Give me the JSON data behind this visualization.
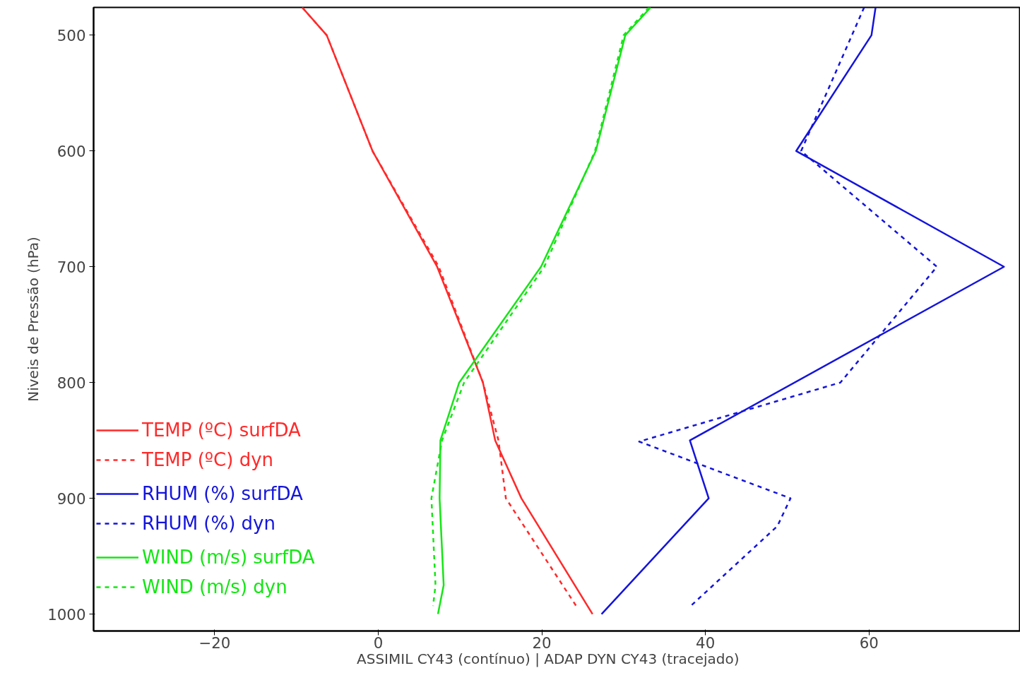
{
  "chart_data": {
    "type": "line",
    "xlabel": "ASSIMIL CY43 (contínuo)   |   ADAP DYN CY43 (tracejado)",
    "ylabel": "Niveis de Pressão (hPa)",
    "xlim": [
      -34.8,
      78.5
    ],
    "ylim": [
      1014.6,
      476
    ],
    "xticks": [
      -20,
      0,
      20,
      40,
      60
    ],
    "yticks": [
      500,
      600,
      700,
      800,
      900,
      1000
    ],
    "grid": false,
    "legend": "left",
    "marker": "none",
    "series": [
      {
        "name": "TEMP (ºC) surfDA",
        "color": "#ff2a2a",
        "line_style": "solid",
        "x": [
          -9.3,
          -6.3,
          -0.7,
          7.2,
          12.8,
          14.3,
          17.5,
          26.2
        ],
        "values": [
          476,
          500,
          600,
          700,
          800,
          850,
          900,
          1000
        ]
      },
      {
        "name": "TEMP (ºC) dyn",
        "color": "#ff2a2a",
        "line_style": "dashed",
        "x": [
          -9.3,
          -6.3,
          -0.7,
          7.4,
          12.8,
          14.7,
          15.6,
          24.2
        ],
        "values": [
          476,
          500,
          600,
          700,
          800,
          850,
          900,
          993
        ]
      },
      {
        "name": "RHUM (%) surfDA",
        "color": "#1414dc",
        "line_style": "solid",
        "x": [
          60.8,
          60.3,
          51.1,
          76.5,
          38.1,
          40.4,
          27.3
        ],
        "values": [
          476,
          500,
          600,
          700,
          850,
          900,
          1000
        ]
      },
      {
        "name": "RHUM (%) dyn",
        "color": "#1414dc",
        "line_style": "dashed",
        "x": [
          59.4,
          51.7,
          68.3,
          56.5,
          31.9,
          50.4,
          48.8,
          38.2
        ],
        "values": [
          476,
          600,
          700,
          800,
          851,
          900,
          924,
          993
        ]
      },
      {
        "name": "WIND (m/s) surfDA",
        "color": "#14e614",
        "line_style": "solid",
        "x": [
          33.3,
          30.2,
          26.6,
          19.9,
          9.9,
          7.6,
          7.5,
          8.0,
          7.3
        ],
        "values": [
          476,
          500,
          600,
          700,
          800,
          850,
          900,
          975,
          1000
        ]
      },
      {
        "name": "WIND (m/s) dyn",
        "color": "#14e614",
        "line_style": "dashed",
        "x": [
          33.1,
          30.0,
          26.5,
          20.3,
          10.5,
          7.8,
          6.5,
          7.0,
          6.7
        ],
        "values": [
          476,
          500,
          600,
          700,
          800,
          850,
          900,
          975,
          993
        ]
      }
    ]
  }
}
